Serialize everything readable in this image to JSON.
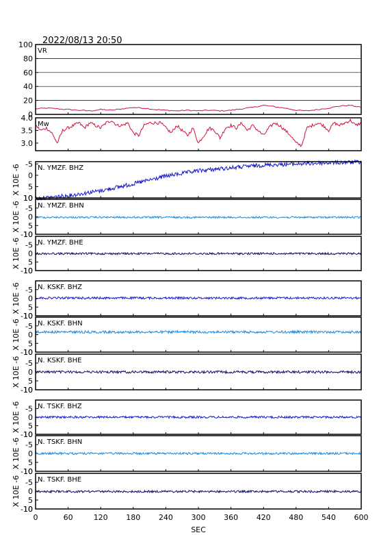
{
  "header": {
    "timestamp": "2022/08/13 20:50"
  },
  "xaxis": {
    "label": "SEC",
    "ticks": [
      0,
      60,
      120,
      180,
      240,
      300,
      360,
      420,
      480,
      540,
      600
    ],
    "range": [
      0,
      600
    ]
  },
  "colors": {
    "fit_trace": "#d0103a",
    "bhz": "#1515cc",
    "bhn": "#1a8ae0",
    "bhe": "#101060",
    "frame": "#000000",
    "grid": "#000000"
  },
  "chart_data": [
    {
      "type": "line",
      "label": "VR",
      "ylim": [
        0,
        100
      ],
      "yticks": [
        "100",
        "80",
        "60",
        "40",
        "20",
        "0"
      ],
      "grid": true,
      "x": [
        0,
        20,
        40,
        60,
        80,
        100,
        120,
        140,
        160,
        180,
        200,
        220,
        240,
        260,
        280,
        300,
        320,
        340,
        360,
        380,
        400,
        420,
        440,
        460,
        480,
        500,
        520,
        540,
        560,
        580,
        600
      ],
      "values": [
        8,
        9,
        8,
        7,
        6,
        5,
        7,
        6,
        8,
        10,
        9,
        7,
        6,
        5,
        6,
        5,
        6,
        5,
        6,
        8,
        10,
        13,
        11,
        9,
        6,
        5,
        7,
        9,
        12,
        13,
        10
      ],
      "color_key": "fit_trace"
    },
    {
      "type": "line",
      "label": "Mw",
      "ylim": [
        2.7,
        4.0
      ],
      "yticks": [
        "4.0",
        "3.5",
        "3.0"
      ],
      "x": [
        0,
        10,
        20,
        30,
        40,
        50,
        60,
        70,
        80,
        90,
        100,
        110,
        120,
        130,
        140,
        150,
        160,
        170,
        180,
        190,
        200,
        210,
        220,
        230,
        240,
        250,
        260,
        270,
        280,
        290,
        300,
        310,
        320,
        330,
        340,
        350,
        360,
        370,
        380,
        390,
        400,
        410,
        420,
        430,
        440,
        450,
        460,
        470,
        480,
        490,
        500,
        510,
        520,
        530,
        540,
        550,
        560,
        570,
        580,
        590,
        600
      ],
      "values": [
        3.7,
        3.5,
        3.6,
        3.4,
        3.0,
        3.5,
        3.6,
        3.7,
        3.8,
        3.6,
        3.8,
        3.7,
        3.6,
        3.8,
        3.9,
        3.7,
        3.7,
        3.8,
        3.4,
        3.3,
        3.7,
        3.8,
        3.8,
        3.8,
        3.6,
        3.4,
        3.7,
        3.5,
        3.3,
        3.6,
        3.0,
        3.3,
        3.6,
        3.5,
        3.2,
        3.6,
        3.7,
        3.6,
        3.8,
        3.5,
        3.7,
        3.5,
        3.3,
        3.6,
        3.8,
        3.7,
        3.5,
        3.3,
        3.0,
        2.9,
        3.6,
        3.7,
        3.8,
        3.7,
        3.5,
        3.8,
        3.7,
        3.8,
        3.9,
        3.7,
        3.8
      ],
      "color_key": "fit_trace"
    },
    {
      "type": "line",
      "label": "N.YMZF.BHZ",
      "ylabel": "X 10E -6",
      "ylim": [
        10,
        -6
      ],
      "yticks": [
        "-5",
        "0",
        "5",
        "10"
      ],
      "base": [
        10.3,
        9.0,
        6.8,
        3.8,
        0.4,
        -2.0,
        -3.3,
        -4.5,
        -5.0,
        -5.5,
        -5.8
      ],
      "base_x": [
        0,
        60,
        120,
        180,
        240,
        300,
        360,
        420,
        480,
        540,
        600
      ],
      "amplitude": 0.9,
      "color_key": "bhz"
    },
    {
      "type": "line",
      "label": "N.YMZF.BHN",
      "ylabel": "X 10E -6",
      "ylim": [
        10,
        -10
      ],
      "yticks": [
        "-5",
        "0",
        "5",
        "10"
      ],
      "offset": 0.3,
      "amplitude": 0.5,
      "color_key": "bhn"
    },
    {
      "type": "line",
      "label": "N.YMZF.BHE",
      "ylabel": "X 10E -6",
      "ylim": [
        10,
        -10
      ],
      "yticks": [
        "-5",
        "0",
        "5",
        "10"
      ],
      "offset": 0.1,
      "amplitude": 0.6,
      "color_key": "bhe"
    },
    {
      "type": "line",
      "label": "N.KSKF.BHZ",
      "ylabel": "X 10E -6",
      "ylim": [
        10,
        -10
      ],
      "yticks": [
        "-5",
        "0",
        "5",
        "10"
      ],
      "offset": -0.2,
      "amplitude": 0.6,
      "color_key": "bhz"
    },
    {
      "type": "line",
      "label": "N.KSKF.BHN",
      "ylabel": "X 10E -6",
      "ylim": [
        10,
        -10
      ],
      "yticks": [
        "-5",
        "0",
        "5",
        "10"
      ],
      "offset": -1.5,
      "amplitude": 0.7,
      "color_key": "bhn"
    },
    {
      "type": "line",
      "label": "N.KSKF.BHE",
      "ylabel": "X 10E -6",
      "ylim": [
        10,
        -10
      ],
      "yticks": [
        "-5",
        "0",
        "5",
        "10"
      ],
      "offset": 0.0,
      "amplitude": 0.7,
      "color_key": "bhe"
    },
    {
      "type": "line",
      "label": "N.TSKF.BHZ",
      "ylabel": "X 10E -6",
      "ylim": [
        10,
        -10
      ],
      "yticks": [
        "-5",
        "0",
        "5",
        "10"
      ],
      "offset": 0.0,
      "amplitude": 0.6,
      "color_key": "bhz"
    },
    {
      "type": "line",
      "label": "N.TSKF.BHN",
      "ylabel": "X 10E -6",
      "ylim": [
        10,
        -10
      ],
      "yticks": [
        "-5",
        "0",
        "5",
        "10"
      ],
      "offset": 0.0,
      "amplitude": 0.6,
      "color_key": "bhn"
    },
    {
      "type": "line",
      "label": "N.TSKF.BHE",
      "ylabel": "X 10E -6",
      "ylim": [
        10,
        -10
      ],
      "yticks": [
        "-5",
        "0",
        "5",
        "10"
      ],
      "offset": 0.2,
      "amplitude": 0.6,
      "color_key": "bhe"
    }
  ]
}
